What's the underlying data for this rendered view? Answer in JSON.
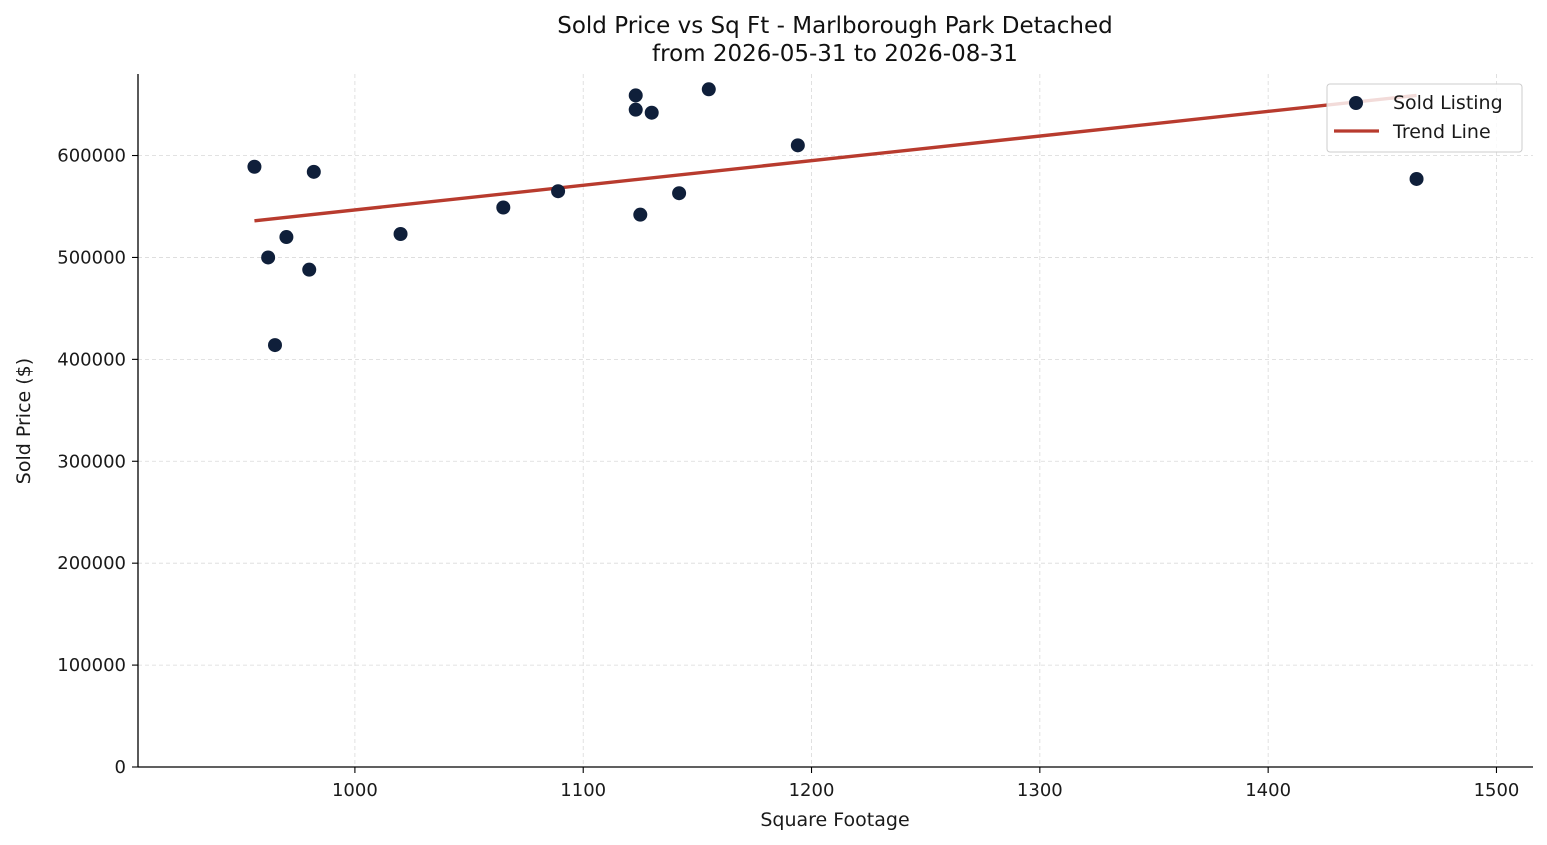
{
  "chart_data": {
    "type": "scatter",
    "title": "Sold Price vs Sq Ft - Marlborough Park Detached",
    "subtitle": "from 2026-05-31 to 2026-08-31",
    "xlabel": "Square Footage",
    "ylabel": "Sold Price ($)",
    "xlim": [
      905,
      1516
    ],
    "ylim": [
      0,
      680000
    ],
    "xticks": [
      1000,
      1100,
      1200,
      1300,
      1400,
      1500
    ],
    "yticks": [
      0,
      100000,
      200000,
      300000,
      400000,
      500000,
      600000
    ],
    "grid": true,
    "legend_position": "top-right",
    "series": [
      {
        "name": "Sold Listing",
        "kind": "scatter",
        "color": "#0f1f3a",
        "points": [
          {
            "x": 956,
            "y": 589000
          },
          {
            "x": 962,
            "y": 500000
          },
          {
            "x": 965,
            "y": 414000
          },
          {
            "x": 970,
            "y": 520000
          },
          {
            "x": 980,
            "y": 488000
          },
          {
            "x": 982,
            "y": 584000
          },
          {
            "x": 1020,
            "y": 523000
          },
          {
            "x": 1065,
            "y": 549000
          },
          {
            "x": 1089,
            "y": 565000
          },
          {
            "x": 1123,
            "y": 645000
          },
          {
            "x": 1123,
            "y": 659000
          },
          {
            "x": 1125,
            "y": 542000
          },
          {
            "x": 1130,
            "y": 642000
          },
          {
            "x": 1142,
            "y": 563000
          },
          {
            "x": 1155,
            "y": 665000
          },
          {
            "x": 1194,
            "y": 610000
          },
          {
            "x": 1465,
            "y": 577000
          }
        ]
      },
      {
        "name": "Trend Line",
        "kind": "line",
        "color": "#b83b2e",
        "points": [
          {
            "x": 956,
            "y": 536000
          },
          {
            "x": 1465,
            "y": 659000
          }
        ]
      }
    ]
  }
}
